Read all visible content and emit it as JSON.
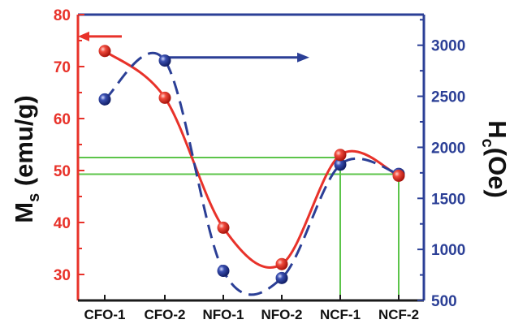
{
  "chart_data": {
    "type": "line",
    "categories": [
      "CFO-1",
      "CFO-2",
      "NFO-1",
      "NFO-2",
      "NCF-1",
      "NCF-2"
    ],
    "left_axis": {
      "label_main": "M",
      "label_sub": "s",
      "label_unit": " (emu/g)",
      "ylim": [
        25,
        80
      ],
      "ticks": [
        "30",
        "40",
        "50",
        "60",
        "70",
        "80"
      ],
      "color": "#e8322a"
    },
    "right_axis": {
      "label_main": "H",
      "label_sub": "c",
      "label_unit": "(Oe)",
      "ylim": [
        500,
        3300
      ],
      "ticks": [
        "500",
        "1000",
        "1500",
        "2000",
        "2500",
        "3000"
      ],
      "color": "#2b3f96"
    },
    "series": [
      {
        "axis": "left",
        "color": "#e8322a",
        "values": [
          73,
          64,
          39,
          32,
          53,
          49
        ]
      },
      {
        "axis": "right",
        "color": "#2b3f96",
        "values": [
          2470,
          2850,
          790,
          720,
          1830,
          1740
        ]
      }
    ],
    "reference_lines": {
      "color": "#5cc44a",
      "left_values": [
        52.5,
        49.3
      ],
      "to_categories": [
        "NCF-1",
        "NCF-2"
      ]
    },
    "grid": false
  }
}
